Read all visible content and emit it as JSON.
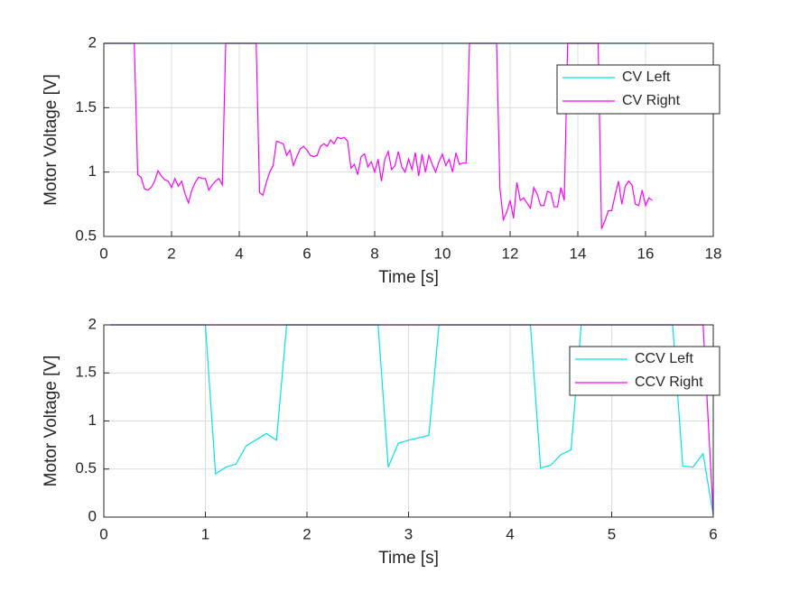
{
  "chart_data": [
    {
      "type": "line",
      "xlabel": "Time [s]",
      "ylabel": "Motor Voltage [V]",
      "xlim": [
        0,
        18
      ],
      "ylim": [
        0.5,
        2
      ],
      "xticks": [
        0,
        2,
        4,
        6,
        8,
        10,
        12,
        14,
        16,
        18
      ],
      "yticks": [
        0.5,
        1,
        1.5,
        2
      ],
      "grid": true,
      "legend": "northeast",
      "series": [
        {
          "name": "CV Left",
          "color": "#00e5e5",
          "x": [
            0,
            16.15
          ],
          "values": [
            2,
            2
          ]
        },
        {
          "name": "CV Right",
          "color": "#ff00ff",
          "x": [
            0,
            0.9,
            1.0,
            1.1,
            1.2,
            1.3,
            1.4,
            1.5,
            1.6,
            1.7,
            1.8,
            1.9,
            2.0,
            2.1,
            2.2,
            2.3,
            2.4,
            2.5,
            2.6,
            2.7,
            2.8,
            2.9,
            3.0,
            3.1,
            3.2,
            3.3,
            3.4,
            3.5,
            3.6,
            4.5,
            4.6,
            4.7,
            4.8,
            4.9,
            5.0,
            5.1,
            5.2,
            5.3,
            5.4,
            5.5,
            5.6,
            5.7,
            5.8,
            5.9,
            6.0,
            6.1,
            6.2,
            6.3,
            6.4,
            6.5,
            6.6,
            6.7,
            6.8,
            6.9,
            7.0,
            7.1,
            7.2,
            7.3,
            7.4,
            7.5,
            7.6,
            7.7,
            7.8,
            7.9,
            8.0,
            8.1,
            8.2,
            8.3,
            8.4,
            8.5,
            8.6,
            8.7,
            8.8,
            8.9,
            9.0,
            9.1,
            9.2,
            9.3,
            9.4,
            9.5,
            9.6,
            9.7,
            9.8,
            9.9,
            10.0,
            10.1,
            10.2,
            10.3,
            10.4,
            10.5,
            10.6,
            10.7,
            10.8,
            11.6,
            11.7,
            11.8,
            11.9,
            12.0,
            12.1,
            12.2,
            12.3,
            12.4,
            12.5,
            12.6,
            12.7,
            12.8,
            12.9,
            13.0,
            13.1,
            13.2,
            13.3,
            13.4,
            13.5,
            13.6,
            13.7,
            14.6,
            14.7,
            14.8,
            14.9,
            15.0,
            15.1,
            15.2,
            15.3,
            15.4,
            15.5,
            15.6,
            15.7,
            15.8,
            15.9,
            16.0,
            16.1,
            16.2
          ],
          "values": [
            2,
            2,
            0.98,
            0.96,
            0.87,
            0.86,
            0.88,
            0.93,
            1.01,
            0.97,
            0.94,
            0.93,
            0.88,
            0.95,
            0.89,
            0.93,
            0.83,
            0.76,
            0.86,
            0.92,
            0.96,
            0.95,
            0.95,
            0.86,
            0.9,
            0.93,
            0.95,
            0.9,
            2,
            2,
            0.84,
            0.82,
            0.92,
            1.0,
            1.05,
            1.24,
            1.23,
            1.22,
            1.13,
            1.17,
            1.05,
            1.12,
            1.18,
            1.2,
            1.17,
            1.13,
            1.12,
            1.13,
            1.2,
            1.22,
            1.2,
            1.25,
            1.22,
            1.27,
            1.26,
            1.27,
            1.24,
            1.03,
            1.06,
            0.98,
            1.12,
            1.14,
            1.04,
            1.08,
            1.0,
            1.1,
            0.93,
            1.1,
            1.16,
            1.02,
            1.05,
            1.16,
            1.04,
            1.0,
            1.1,
            1.02,
            1.15,
            0.97,
            1.14,
            1.0,
            1.13,
            1.06,
            1.0,
            1.08,
            1.14,
            1.05,
            1.1,
            1.0,
            1.15,
            1.06,
            1.07,
            1.07,
            2,
            2,
            0.87,
            0.63,
            0.69,
            0.78,
            0.64,
            0.92,
            0.78,
            0.8,
            0.76,
            0.72,
            0.88,
            0.83,
            0.74,
            0.74,
            0.85,
            0.84,
            0.73,
            0.73,
            0.88,
            0.78,
            2,
            2,
            0.56,
            0.62,
            0.7,
            0.7,
            0.82,
            0.93,
            0.75,
            0.89,
            0.93,
            0.9,
            0.75,
            0.74,
            0.86,
            0.74,
            0.8,
            0.78
          ]
        }
      ]
    },
    {
      "type": "line",
      "xlabel": "Time [s]",
      "ylabel": "Motor Voltage [V]",
      "xlim": [
        0,
        6
      ],
      "ylim": [
        0,
        2
      ],
      "xticks": [
        0,
        1,
        2,
        3,
        4,
        5,
        6
      ],
      "yticks": [
        0,
        0.5,
        1,
        1.5,
        2
      ],
      "grid": true,
      "legend": "northeast",
      "series": [
        {
          "name": "CCV Left",
          "color": "#00e5e5",
          "x": [
            0.06,
            1.0,
            1.1,
            1.2,
            1.3,
            1.4,
            1.6,
            1.7,
            1.8,
            2.7,
            2.8,
            2.9,
            3.0,
            3.2,
            3.3,
            4.2,
            4.3,
            4.4,
            4.5,
            4.6,
            4.7,
            5.6,
            5.7,
            5.8,
            5.9,
            6.0
          ],
          "values": [
            2,
            2,
            0.45,
            0.52,
            0.55,
            0.74,
            0.87,
            0.8,
            2,
            2,
            0.52,
            0.77,
            0.8,
            0.85,
            2,
            2,
            0.51,
            0.54,
            0.65,
            0.7,
            2,
            2,
            0.53,
            0.52,
            0.66,
            0.02
          ]
        },
        {
          "name": "CCV Right",
          "color": "#ff00ff",
          "x": [
            0.06,
            5.9,
            6.0
          ],
          "values": [
            2,
            2,
            0.02
          ]
        }
      ]
    }
  ]
}
